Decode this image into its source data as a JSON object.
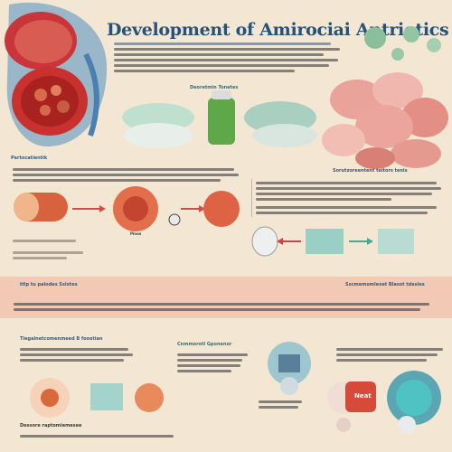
{
  "header": {
    "title": "Development of Amirociai Antriotics"
  },
  "top_center": {
    "caption": "Deoretmin Tonetes"
  },
  "sections": {
    "left_mid": "Pertocatientik",
    "right_mid": "Sorutzoreentent teitors tenis",
    "band": "ttlp tu palodes Ssixtes",
    "band_right": "Sscmemomlexet Blasot tdesies",
    "bottom_left": "Tiegalnetcomenmeed B fooetian",
    "bottom_center": "Cnmmorotl Gponenor",
    "bottom_left_caption": "Dessore raptomiemesee",
    "bottom_right_badge": "Neat",
    "mid_small_label": "Pinos"
  },
  "colors": {
    "background": "#f3e7d4",
    "title": "#23527a",
    "band": "#f1c9b4",
    "accent_green": "#7bb08e",
    "accent_red": "#d85a4a",
    "accent_teal": "#5aa7b3"
  }
}
